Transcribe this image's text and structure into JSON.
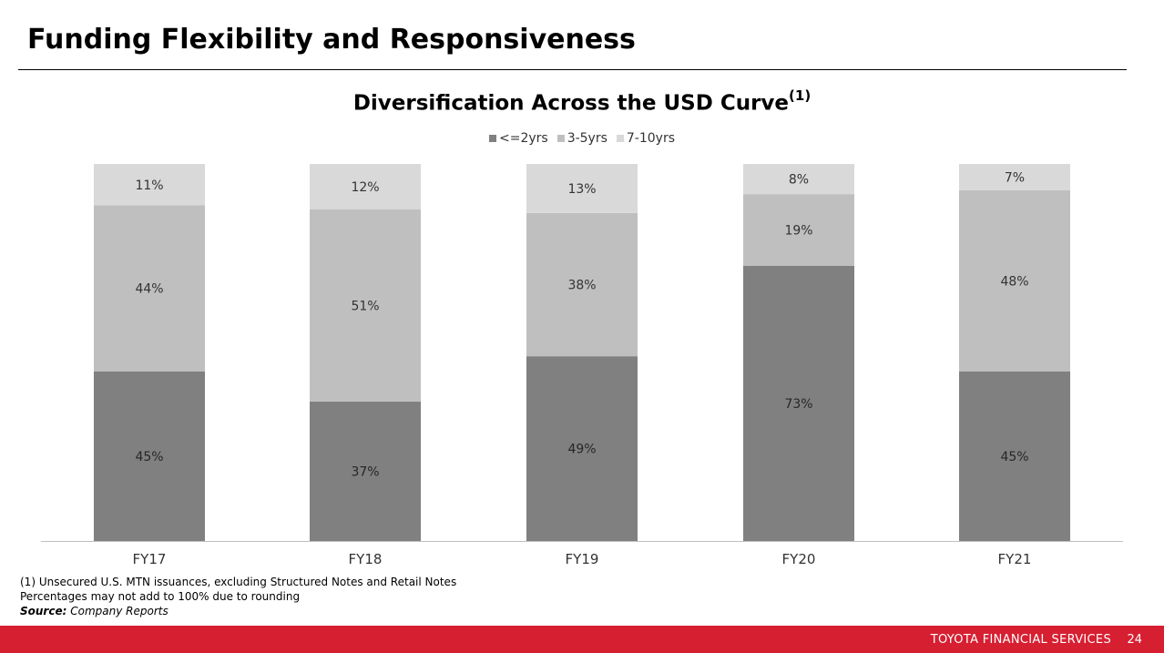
{
  "page": {
    "title": "Funding Flexibility and Responsiveness"
  },
  "chart_data": {
    "type": "bar",
    "stacked": true,
    "title": "Diversification Across the USD Curve",
    "title_superscript": "(1)",
    "categories": [
      "FY17",
      "FY18",
      "FY19",
      "FY20",
      "FY21"
    ],
    "series": [
      {
        "name": "<=2yrs",
        "values": [
          45,
          37,
          49,
          73,
          45
        ],
        "labels": [
          "45%",
          "37%",
          "49%",
          "73%",
          "45%"
        ],
        "color": "#808080"
      },
      {
        "name": "3-5yrs",
        "values": [
          44,
          51,
          38,
          19,
          48
        ],
        "labels": [
          "44%",
          "51%",
          "38%",
          "19%",
          "48%"
        ],
        "color": "#bfbfbf"
      },
      {
        "name": "7-10yrs",
        "values": [
          11,
          12,
          13,
          8,
          7
        ],
        "labels": [
          "11%",
          "12%",
          "13%",
          "8%",
          "7%"
        ],
        "color": "#d9d9d9"
      }
    ],
    "legend_position": "top-center",
    "grid": false,
    "value_axis_visible": false
  },
  "footnotes": {
    "note1": "(1)  Unsecured U.S. MTN issuances, excluding Structured Notes and Retail Notes",
    "note2": "Percentages may not add to 100% due to rounding",
    "source_label": "Source:",
    "source_text": "Company Reports"
  },
  "footer": {
    "brand": "TOYOTA FINANCIAL SERVICES",
    "page_number": "24",
    "color": "#d71f32"
  }
}
